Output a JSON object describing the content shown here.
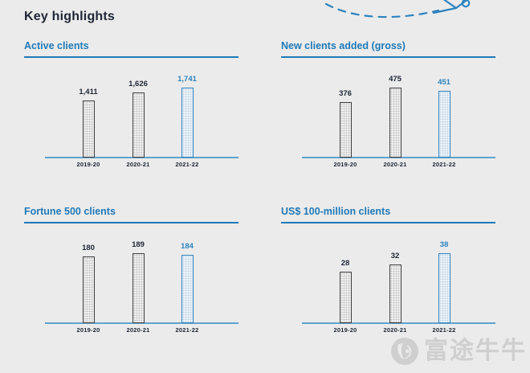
{
  "page": {
    "title": "Key highlights"
  },
  "decoration": {
    "name": "dashed-flight-path-illustration",
    "color": "#2e83bf"
  },
  "colors": {
    "background": "#ebebeb",
    "heading_navy": "#1e2636",
    "accent_blue": "#1f7ab8",
    "highlight_bar_blue": "#2e83bf",
    "axis_blue": "#5ea3cf",
    "bar_outline_gray": "#3f3f3f",
    "watermark_gray": "#b9b9b9"
  },
  "watermark": {
    "logo": "futu-bull-logo",
    "text": "富途牛牛"
  },
  "chart_data": [
    {
      "type": "bar",
      "title": "Active clients",
      "categories": [
        "2019-20",
        "2020-21",
        "2021-22"
      ],
      "values": [
        1411,
        1626,
        1741
      ],
      "value_labels": [
        "1,411",
        "1,626",
        "1,741"
      ],
      "highlight_index": 2,
      "highlight_category": "2021-22",
      "xlabel": "",
      "ylabel": "",
      "ylim": [
        0,
        1741
      ],
      "grid": false,
      "legend": "none"
    },
    {
      "type": "bar",
      "title": "New clients added (gross)",
      "categories": [
        "2019-20",
        "2020-21",
        "2021-22"
      ],
      "values": [
        376,
        475,
        451
      ],
      "value_labels": [
        "376",
        "475",
        "451"
      ],
      "highlight_index": 2,
      "highlight_category": "2021-22",
      "xlabel": "",
      "ylabel": "",
      "ylim": [
        0,
        475
      ],
      "grid": false,
      "legend": "none"
    },
    {
      "type": "bar",
      "title": "Fortune 500 clients",
      "categories": [
        "2019-20",
        "2020-21",
        "2021-22"
      ],
      "values": [
        180,
        189,
        184
      ],
      "value_labels": [
        "180",
        "189",
        "184"
      ],
      "highlight_index": 2,
      "highlight_category": "2021-22",
      "xlabel": "",
      "ylabel": "",
      "ylim": [
        0,
        189
      ],
      "grid": false,
      "legend": "none"
    },
    {
      "type": "bar",
      "title": "US$ 100-million clients",
      "categories": [
        "2019-20",
        "2020-21",
        "2021-22"
      ],
      "values": [
        28,
        32,
        38
      ],
      "value_labels": [
        "28",
        "32",
        "38"
      ],
      "highlight_index": 2,
      "highlight_category": "2021-22",
      "xlabel": "",
      "ylabel": "",
      "ylim": [
        0,
        38
      ],
      "grid": false,
      "legend": "none"
    }
  ]
}
